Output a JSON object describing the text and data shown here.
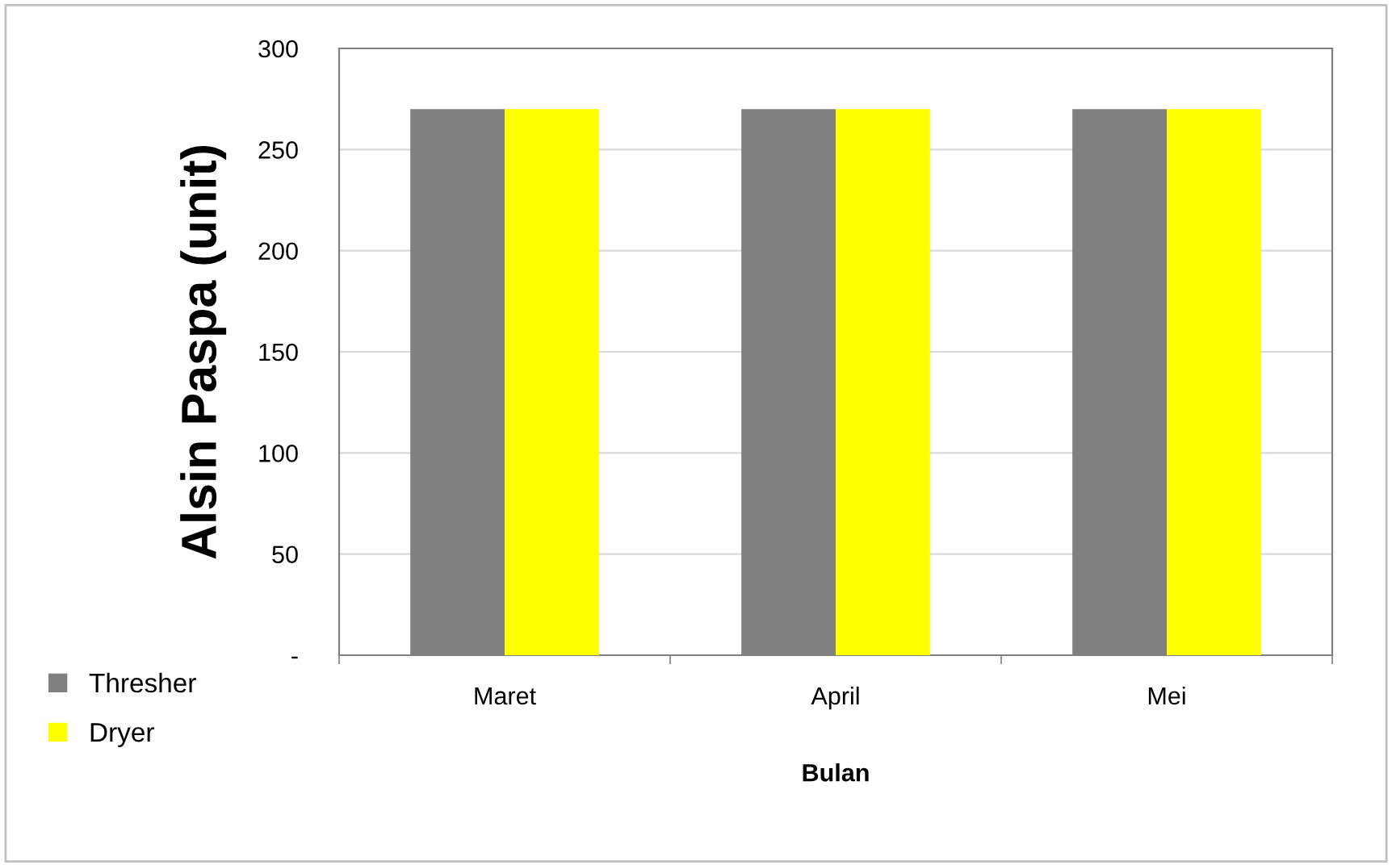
{
  "chart_data": {
    "type": "bar",
    "xlabel": "Bulan",
    "ylabel": "Alsin Paspa (unit)",
    "categories": [
      "Maret",
      "April",
      "Mei"
    ],
    "series": [
      {
        "name": "Thresher",
        "color": "#808080",
        "values": [
          270,
          270,
          270
        ]
      },
      {
        "name": "Dryer",
        "color": "#ffff00",
        "values": [
          270,
          270,
          270
        ]
      }
    ],
    "ylim": [
      0,
      300
    ],
    "yticks": [
      {
        "value": 0,
        "label": "-"
      },
      50,
      100,
      150,
      200,
      250,
      300
    ],
    "grid": "y",
    "legend": "bottom left"
  }
}
